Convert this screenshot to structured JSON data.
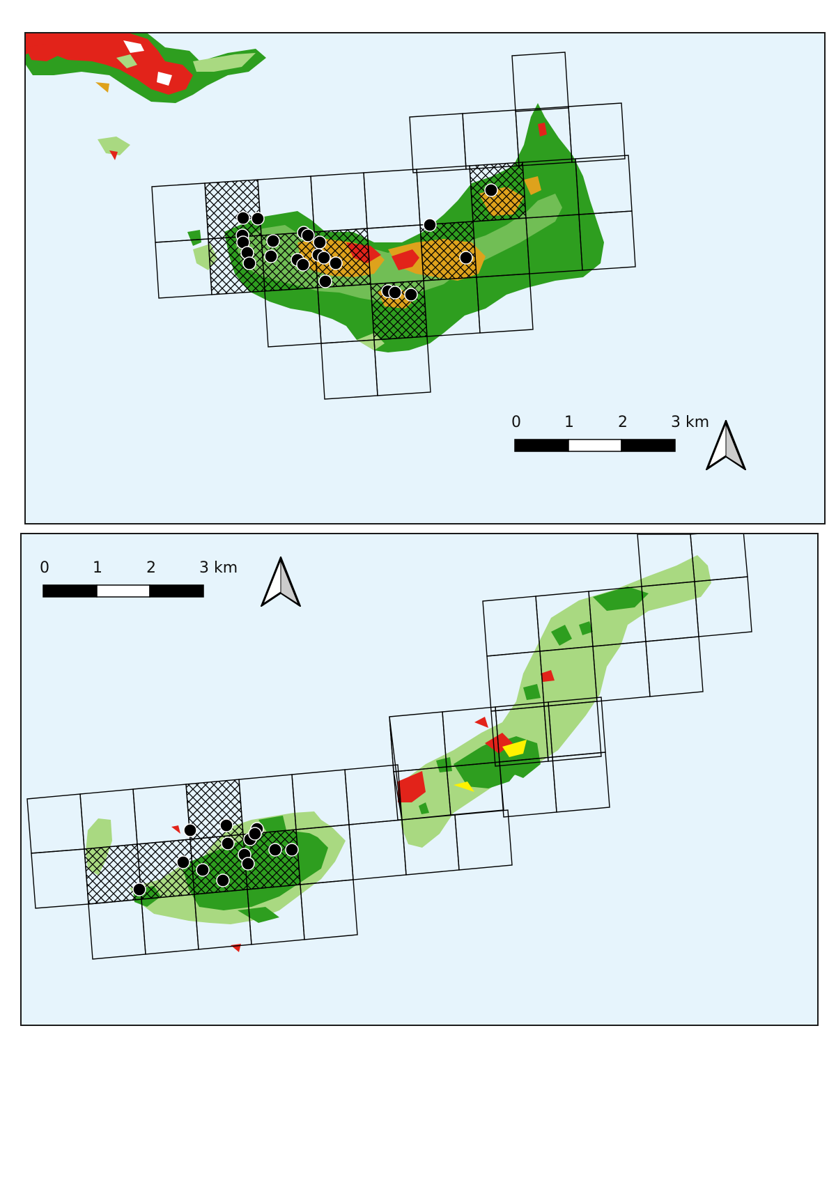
{
  "colors": {
    "sea": "#e6f4fc",
    "forest": "#2e9e1f",
    "light_veg": "#a9d981",
    "urban": "#e2231a",
    "agriculture": "#dea21c",
    "yellow": "#fff200",
    "grid": "#000000",
    "point": "#000000"
  },
  "maps": {
    "top": {
      "scalebar": {
        "labels": [
          "0",
          "1",
          "2",
          "3 km"
        ],
        "segments": 3
      },
      "north_arrow": "north-arrow-icon"
    },
    "bottom": {
      "scalebar": {
        "labels": [
          "0",
          "1",
          "2",
          "3 km"
        ],
        "segments": 3
      },
      "north_arrow": "north-arrow-icon"
    }
  }
}
